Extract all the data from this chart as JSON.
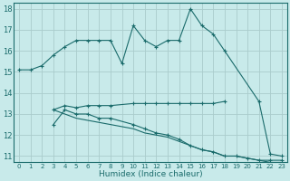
{
  "xlabel": "Humidex (Indice chaleur)",
  "bg_color": "#c8eaea",
  "grid_color": "#aacccc",
  "line_color": "#1a6b6b",
  "xlim": [
    -0.5,
    23.5
  ],
  "ylim": [
    10.7,
    18.3
  ],
  "yticks": [
    11,
    12,
    13,
    14,
    15,
    16,
    17,
    18
  ],
  "xticks": [
    0,
    1,
    2,
    3,
    4,
    5,
    6,
    7,
    8,
    9,
    10,
    11,
    12,
    13,
    14,
    15,
    16,
    17,
    18,
    19,
    20,
    21,
    22,
    23
  ],
  "series": [
    {
      "x": [
        0,
        1,
        2,
        3,
        4,
        5,
        6,
        7,
        8,
        9,
        10,
        11,
        12,
        13,
        14,
        15,
        16,
        17,
        18,
        21,
        22,
        23
      ],
      "y": [
        15.1,
        15.1,
        15.3,
        15.8,
        16.2,
        16.5,
        16.5,
        16.5,
        16.5,
        15.4,
        17.2,
        16.5,
        16.2,
        16.5,
        16.5,
        18.0,
        17.2,
        16.8,
        16.0,
        13.6,
        11.1,
        11.0
      ],
      "marker": true,
      "connected": true
    },
    {
      "x": [
        3,
        4,
        5,
        6,
        7,
        8,
        10,
        11,
        12,
        13,
        14,
        15,
        16,
        17,
        18
      ],
      "y": [
        13.2,
        13.4,
        13.3,
        13.4,
        13.4,
        13.4,
        13.5,
        13.5,
        13.5,
        13.5,
        13.5,
        13.5,
        13.5,
        13.5,
        13.6
      ],
      "marker": true,
      "connected": true
    },
    {
      "x": [
        3,
        4,
        5,
        6,
        7,
        8,
        10,
        11,
        12,
        13,
        14,
        15,
        16,
        17,
        18,
        19,
        20,
        21,
        22,
        23
      ],
      "y": [
        12.5,
        13.2,
        13.0,
        13.0,
        12.8,
        12.8,
        12.5,
        12.3,
        12.1,
        12.0,
        11.8,
        11.5,
        11.3,
        11.2,
        11.0,
        11.0,
        10.9,
        10.8,
        10.8,
        10.8
      ],
      "marker": true,
      "connected": true
    },
    {
      "x": [
        3,
        4,
        5,
        6,
        7,
        8,
        10,
        11,
        12,
        13,
        14,
        15,
        16,
        17,
        18,
        19,
        20,
        21,
        22,
        23
      ],
      "y": [
        13.2,
        13.0,
        12.8,
        12.7,
        12.6,
        12.5,
        12.3,
        12.1,
        12.0,
        11.9,
        11.7,
        11.5,
        11.3,
        11.2,
        11.0,
        11.0,
        10.9,
        10.8,
        10.7,
        10.7
      ],
      "marker": false,
      "connected": true
    }
  ]
}
